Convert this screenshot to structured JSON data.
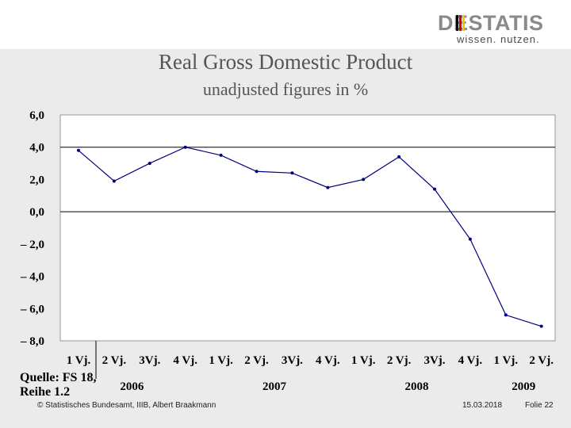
{
  "logo": {
    "text": "DESTATIS",
    "tagline": "wissen. nutzen."
  },
  "header": {
    "title": "Real Gross Domestic Product",
    "subtitle": "unadjusted figures in %"
  },
  "chart_data": {
    "type": "line",
    "title": "Real Gross Domestic Product",
    "subtitle": "unadjusted figures in %",
    "xlabel": "",
    "ylabel": "",
    "ylim": [
      -8.0,
      6.0
    ],
    "y_ticks": [
      "6,0",
      "4,0",
      "2,0",
      "0,0",
      "– 2,0",
      "– 4,0",
      "– 6,0",
      "– 8,0"
    ],
    "y_tick_values": [
      6,
      4,
      2,
      0,
      -2,
      -4,
      -6,
      -8
    ],
    "categories": [
      "1 Vj.",
      "2 Vj.",
      "3Vj.",
      "4 Vj.",
      "1 Vj.",
      "2 Vj.",
      "3Vj.",
      "4 Vj.",
      "1 Vj.",
      "2 Vj.",
      "3Vj.",
      "4 Vj.",
      "1 Vj.",
      "2 Vj."
    ],
    "year_labels": [
      {
        "label": "2006",
        "start": 0,
        "end": 3
      },
      {
        "label": "2007",
        "start": 4,
        "end": 7
      },
      {
        "label": "2008",
        "start": 8,
        "end": 11
      },
      {
        "label": "2009",
        "start": 12,
        "end": 13
      }
    ],
    "series": [
      {
        "values": [
          3.8,
          1.9,
          3.0,
          4.0,
          3.5,
          2.5,
          2.4,
          1.5,
          2.0,
          3.4,
          1.4,
          -1.7,
          -6.4,
          -7.1
        ],
        "color": "#000080"
      }
    ],
    "gridlines": [
      4,
      0
    ],
    "grid": true,
    "legend": "none"
  },
  "footer": {
    "source": "Quelle: FS 18, Reihe 1.2",
    "copyright": "© Statistisches Bundesamt, IIIB, Albert Braakmann",
    "date": "15.03.2018",
    "slide": "Folie 22"
  }
}
